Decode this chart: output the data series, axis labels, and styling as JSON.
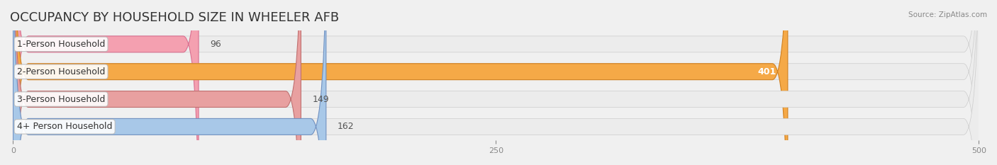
{
  "title": "OCCUPANCY BY HOUSEHOLD SIZE IN WHEELER AFB",
  "source": "Source: ZipAtlas.com",
  "categories": [
    "1-Person Household",
    "2-Person Household",
    "3-Person Household",
    "4+ Person Household"
  ],
  "values": [
    96,
    401,
    149,
    162
  ],
  "bar_colors": [
    "#f4a0b0",
    "#f5a947",
    "#e8a0a0",
    "#a8c8e8"
  ],
  "bar_edge_colors": [
    "#d97090",
    "#d08020",
    "#c07070",
    "#7090c0"
  ],
  "background_color": "#f0f0f0",
  "xlim": [
    0,
    500
  ],
  "xticks": [
    0,
    250,
    500
  ],
  "title_fontsize": 13,
  "label_fontsize": 9,
  "value_fontsize": 9,
  "bar_height": 0.55,
  "figsize": [
    14.06,
    2.33
  ],
  "dpi": 100
}
